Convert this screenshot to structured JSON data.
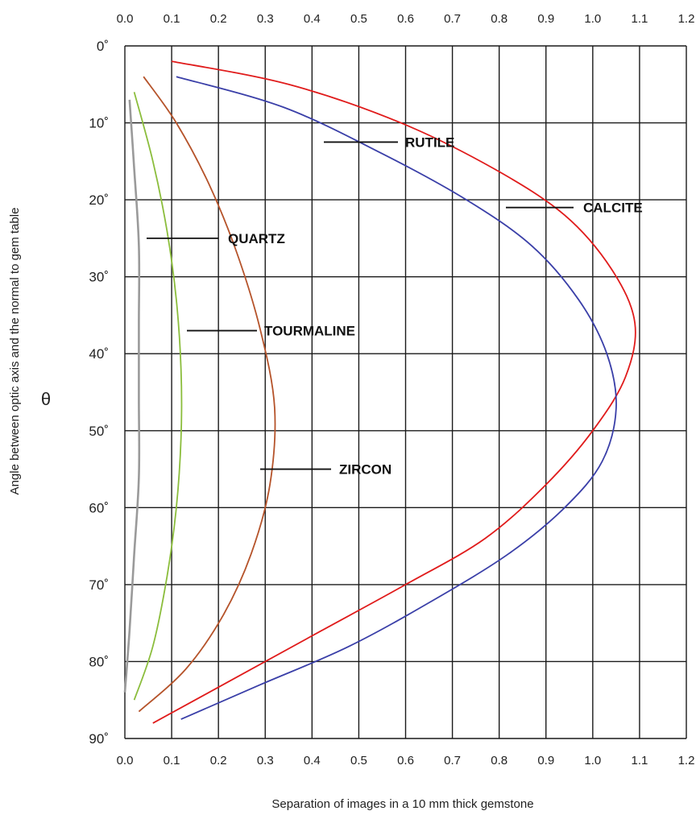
{
  "chart_data": {
    "type": "line",
    "xlabel": "Separation of images in a 10 mm thick gemstone",
    "ylabel": "Angle between optic axis and the normal to gem table",
    "ysymbol": "θ",
    "xlim": [
      0.0,
      1.2
    ],
    "ylim": [
      0,
      90
    ],
    "x_ticks": [
      "0.0",
      "0.1",
      "0.2",
      "0.3",
      "0.4",
      "0.5",
      "0.6",
      "0.7",
      "0.8",
      "0.9",
      "1.0",
      "1.1",
      "1.2"
    ],
    "y_ticks": [
      "0˚",
      "10˚",
      "20˚",
      "30˚",
      "40˚",
      "50˚",
      "60˚",
      "70˚",
      "80˚",
      "90˚"
    ],
    "grid": true,
    "series": [
      {
        "name": "CALCITE",
        "color": "#e01b1b",
        "x": [
          0.1,
          0.35,
          0.59,
          0.79,
          0.94,
          1.04,
          1.09,
          1.07,
          1.0,
          0.9,
          0.77,
          0.6,
          0.42,
          0.24,
          0.06
        ],
        "y": [
          2,
          5,
          10,
          16,
          22,
          29,
          36,
          43,
          50,
          57,
          64,
          70,
          76,
          82,
          88
        ]
      },
      {
        "name": "RUTILE",
        "color": "#3a3fa8",
        "x": [
          0.11,
          0.34,
          0.55,
          0.73,
          0.87,
          0.97,
          1.03,
          1.05,
          1.02,
          0.94,
          0.82,
          0.66,
          0.48,
          0.29,
          0.12
        ],
        "y": [
          4,
          8,
          14,
          20,
          26,
          33,
          40,
          47,
          54,
          60,
          66,
          72,
          78,
          83,
          87.5
        ]
      },
      {
        "name": "ZIRCON",
        "color": "#b5532a",
        "x": [
          0.04,
          0.11,
          0.18,
          0.24,
          0.29,
          0.32,
          0.31,
          0.27,
          0.21,
          0.13,
          0.03
        ],
        "y": [
          4,
          10,
          18,
          27,
          37,
          47,
          57,
          66,
          74,
          81,
          86.5
        ]
      },
      {
        "name": "QUARTZ",
        "color": "#8bbd3c",
        "x": [
          0.02,
          0.06,
          0.09,
          0.11,
          0.12,
          0.12,
          0.11,
          0.09,
          0.06,
          0.02
        ],
        "y": [
          6,
          15,
          24,
          33,
          42,
          51,
          60,
          69,
          78,
          85
        ]
      },
      {
        "name": "TOURMALINE",
        "color": "#9a9a9a",
        "x": [
          0.01,
          0.02,
          0.03,
          0.03,
          0.03,
          0.03,
          0.02,
          0.01,
          0.0
        ],
        "y": [
          7,
          16,
          26,
          36,
          46,
          56,
          66,
          76,
          84
        ]
      }
    ],
    "annotations": [
      {
        "text": "RUTILE",
        "x": 0.6,
        "y": 12.5
      },
      {
        "text": "CALCITE",
        "x": 1.02,
        "y": 21
      },
      {
        "text": "QUARTZ",
        "x": 0.2,
        "y": 25
      },
      {
        "text": "TOURMALINE",
        "x": 0.3,
        "y": 37
      },
      {
        "text": "ZIRCON",
        "x": 0.45,
        "y": 55
      }
    ]
  }
}
